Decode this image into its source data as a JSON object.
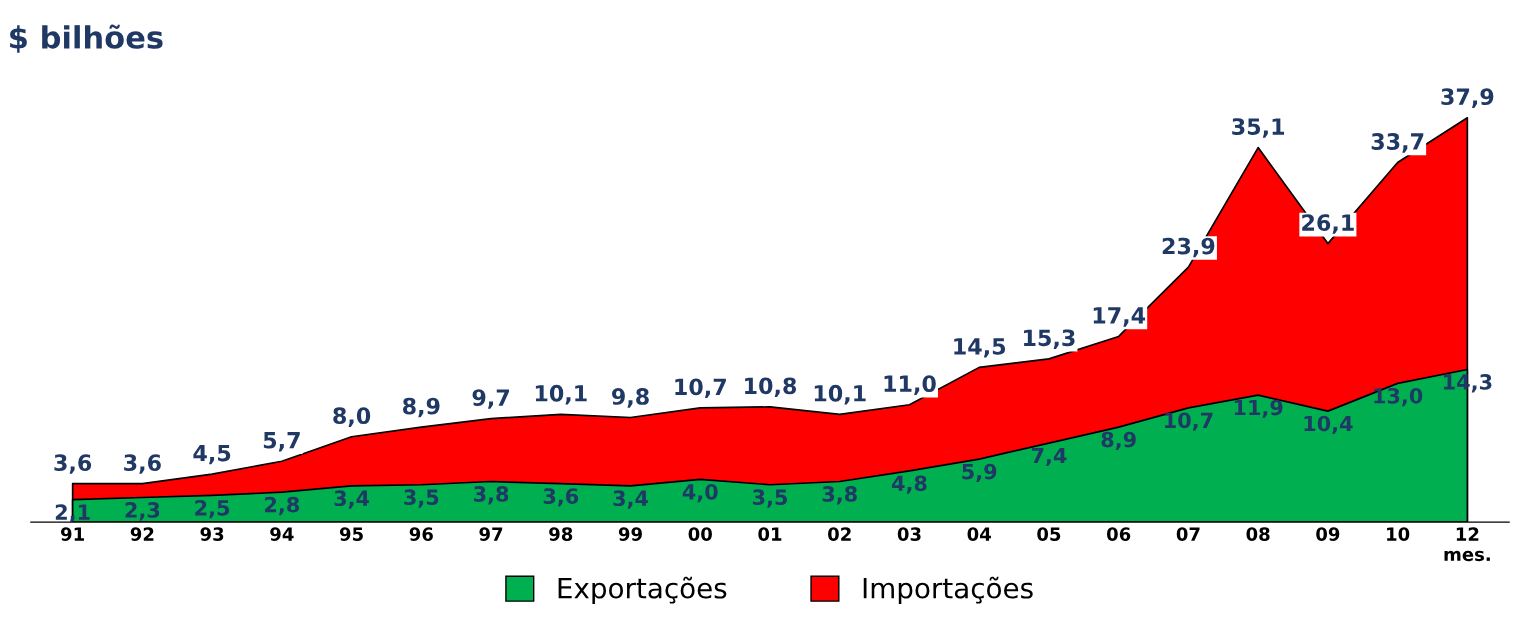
{
  "chart_data": {
    "type": "area",
    "title": "$ bilhões",
    "categories": [
      "91",
      "92",
      "93",
      "94",
      "95",
      "96",
      "97",
      "98",
      "99",
      "00",
      "01",
      "02",
      "03",
      "04",
      "05",
      "06",
      "07",
      "08",
      "09",
      "10",
      "12\nmes."
    ],
    "series": [
      {
        "name": "Importações",
        "color": "#ff0000",
        "values": [
          3.6,
          3.6,
          4.5,
          5.7,
          8.0,
          8.9,
          9.7,
          10.1,
          9.8,
          10.7,
          10.8,
          10.1,
          11.0,
          14.5,
          15.3,
          17.4,
          23.9,
          35.1,
          26.1,
          33.7,
          37.9
        ],
        "value_labels": [
          "3,6",
          "3,6",
          "4,5",
          "5,7",
          "8,0",
          "8,9",
          "9,7",
          "10,1",
          "9,8",
          "10,7",
          "10,8",
          "10,1",
          "11,0",
          "14,5",
          "15,3",
          "17,4",
          "23,9",
          "35,1",
          "26,1",
          "33,7",
          "37,9"
        ]
      },
      {
        "name": "Exportações",
        "color": "#00b050",
        "values": [
          2.1,
          2.3,
          2.5,
          2.8,
          3.4,
          3.5,
          3.8,
          3.6,
          3.4,
          4.0,
          3.5,
          3.8,
          4.8,
          5.9,
          7.4,
          8.9,
          10.7,
          11.9,
          10.4,
          13.0,
          14.3
        ],
        "value_labels": [
          "2,1",
          "2,3",
          "2,5",
          "2,8",
          "3,4",
          "3,5",
          "3,8",
          "3,6",
          "3,4",
          "4,0",
          "3,5",
          "3,8",
          "4,8",
          "5,9",
          "7,4",
          "8,9",
          "10,7",
          "11,9",
          "10,4",
          "13,0",
          "14,3"
        ]
      }
    ],
    "legend": "bottom",
    "grid": false
  }
}
